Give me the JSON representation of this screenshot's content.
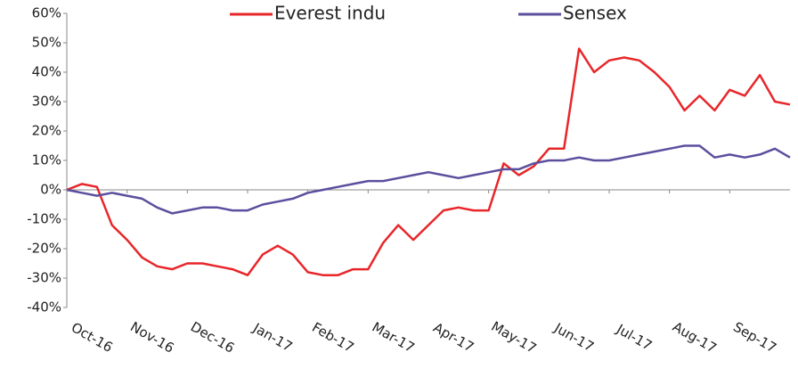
{
  "chart_data": {
    "type": "line",
    "categories": [
      "Oct-16",
      null,
      null,
      null,
      "Nov-16",
      null,
      null,
      null,
      "Dec-16",
      null,
      null,
      null,
      "Jan-17",
      null,
      null,
      null,
      "Feb-17",
      null,
      null,
      null,
      "Mar-17",
      null,
      null,
      null,
      "Apr-17",
      null,
      null,
      null,
      "May-17",
      null,
      null,
      null,
      "Jun-17",
      null,
      null,
      null,
      "Jul-17",
      null,
      null,
      null,
      "Aug-17",
      null,
      null,
      null,
      "Sep-17",
      null,
      null,
      null,
      null
    ],
    "series": [
      {
        "name": "Everest indu",
        "color": "#e8262a",
        "values": [
          0,
          2,
          1,
          -12,
          -17,
          -23,
          -26,
          -27,
          -25,
          -25,
          -26,
          -27,
          -29,
          -22,
          -19,
          -22,
          -28,
          -29,
          -29,
          -27,
          -27,
          -18,
          -12,
          -17,
          -12,
          -7,
          -6,
          -7,
          -7,
          9,
          5,
          8,
          14,
          14,
          48,
          40,
          44,
          45,
          44,
          40,
          35,
          27,
          32,
          27,
          34,
          32,
          39,
          30,
          29
        ]
      },
      {
        "name": "Sensex",
        "color": "#5b4f9e",
        "values": [
          0,
          -1,
          -2,
          -1,
          -2,
          -3,
          -6,
          -8,
          -7,
          -6,
          -6,
          -7,
          -7,
          -5,
          -4,
          -3,
          -1,
          0,
          1,
          2,
          3,
          3,
          4,
          5,
          6,
          5,
          4,
          5,
          6,
          7,
          7,
          9,
          10,
          10,
          11,
          10,
          10,
          11,
          12,
          13,
          14,
          15,
          15,
          11,
          12,
          11,
          12,
          14,
          11
        ]
      }
    ],
    "ylim": [
      -40,
      60
    ],
    "yticks": [
      {
        "value": -40,
        "label": "-40%"
      },
      {
        "value": -30,
        "label": "-30%"
      },
      {
        "value": -20,
        "label": "-20%"
      },
      {
        "value": -10,
        "label": "-10%"
      },
      {
        "value": 0,
        "label": "0%"
      },
      {
        "value": 10,
        "label": "10%"
      },
      {
        "value": 20,
        "label": "20%"
      },
      {
        "value": 30,
        "label": "30%"
      },
      {
        "value": 40,
        "label": "40%"
      },
      {
        "value": 50,
        "label": "50%"
      },
      {
        "value": 60,
        "label": "60%"
      }
    ],
    "legend": "top"
  }
}
